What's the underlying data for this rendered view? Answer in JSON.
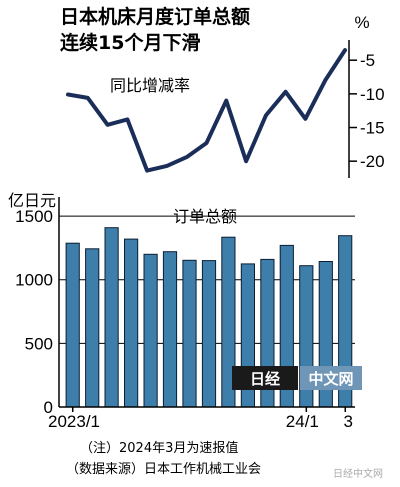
{
  "title_line1": "日本机床月度订单总额",
  "title_line2": "连续15个月下滑",
  "watermark": {
    "logo_text": "日经",
    "site_text": "中文网",
    "social_text": "日经中文网"
  },
  "notes": {
    "note": "（注）2024年3月为速报值",
    "source": "（数据来源）日本工作机械工业会"
  },
  "chart_data": [
    {
      "type": "line",
      "label": "同比增减率",
      "unit": "%",
      "ylim": [
        -22.5,
        -2
      ],
      "yticks": [
        -5,
        -10,
        -15,
        -20
      ],
      "grid": false,
      "x": [
        "2023/1",
        "2023/2",
        "2023/3",
        "2023/4",
        "2023/5",
        "2023/6",
        "2023/7",
        "2023/8",
        "2023/9",
        "2023/10",
        "2023/11",
        "2023/12",
        "24/1",
        "24/2",
        "24/3"
      ],
      "values": [
        -10.1,
        -10.6,
        -14.6,
        -13.8,
        -21.4,
        -20.7,
        -19.4,
        -17.3,
        -11.0,
        -20.0,
        -13.2,
        -9.7,
        -13.7,
        -8.0,
        -3.5
      ]
    },
    {
      "type": "bar",
      "label": "订单总额",
      "unit": "亿日元",
      "ylim": [
        0,
        1650
      ],
      "yticks": [
        0,
        500,
        1000,
        1500
      ],
      "grid": true,
      "x_tick_labels": [
        "2023/1",
        "24/1",
        "3"
      ],
      "categories": [
        "2023/1",
        "2023/2",
        "2023/3",
        "2023/4",
        "2023/5",
        "2023/6",
        "2023/7",
        "2023/8",
        "2023/9",
        "2023/10",
        "2023/11",
        "2023/12",
        "24/1",
        "24/2",
        "24/3"
      ],
      "values": [
        1287,
        1243,
        1409,
        1319,
        1200,
        1220,
        1153,
        1150,
        1334,
        1124,
        1160,
        1270,
        1110,
        1143,
        1346
      ]
    }
  ],
  "colors": {
    "line": "#1a2e59",
    "bar_fill": "#3d7eaa",
    "bar_stroke": "#0b1f33",
    "grid": "#000000"
  }
}
